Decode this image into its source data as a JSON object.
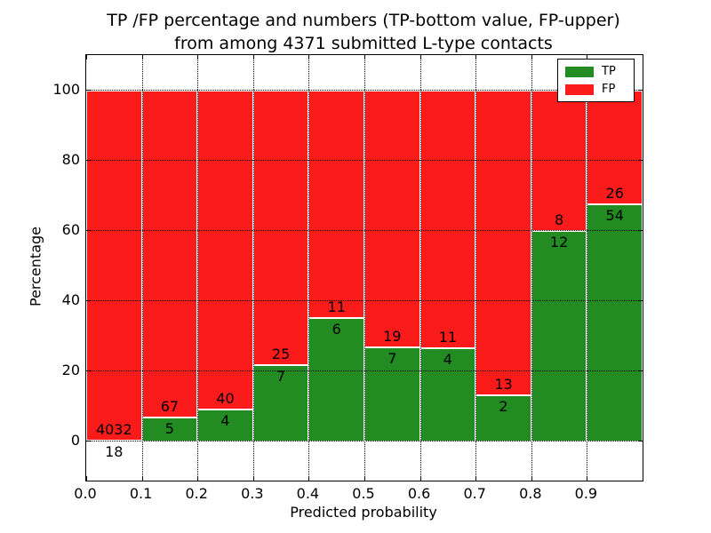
{
  "chart_data": {
    "type": "bar",
    "stacked": true,
    "title_line1": "TP /FP percentage and numbers (TP-bottom value, FP-upper)",
    "title_line2": "from among 4371 submitted L-type contacts",
    "xlabel": "Predicted probability",
    "ylabel": "Percentage",
    "x_ticks": [
      "0.0",
      "0.1",
      "0.2",
      "0.3",
      "0.4",
      "0.5",
      "0.6",
      "0.7",
      "0.8",
      "0.9"
    ],
    "y_ticks": [
      0,
      20,
      40,
      60,
      80,
      100
    ],
    "xlim": [
      0.0,
      1.0
    ],
    "ylim": [
      -11,
      110
    ],
    "grid": "dotted",
    "legend_position": "upper right",
    "total_contacts": 4371,
    "tp_color": "#228b22",
    "fp_color": "#fb1b1b",
    "bins": [
      {
        "range": "0.0-0.1",
        "tp": 18,
        "fp": 4032,
        "tp_pct": 0.44
      },
      {
        "range": "0.1-0.2",
        "tp": 5,
        "fp": 67,
        "tp_pct": 6.94
      },
      {
        "range": "0.2-0.3",
        "tp": 4,
        "fp": 40,
        "tp_pct": 9.09
      },
      {
        "range": "0.3-0.4",
        "tp": 7,
        "fp": 25,
        "tp_pct": 21.88
      },
      {
        "range": "0.4-0.5",
        "tp": 6,
        "fp": 11,
        "tp_pct": 35.29
      },
      {
        "range": "0.5-0.6",
        "tp": 7,
        "fp": 19,
        "tp_pct": 26.92
      },
      {
        "range": "0.6-0.7",
        "tp": 4,
        "fp": 11,
        "tp_pct": 26.67
      },
      {
        "range": "0.7-0.8",
        "tp": 2,
        "fp": 13,
        "tp_pct": 13.33
      },
      {
        "range": "0.8-0.9",
        "tp": 12,
        "fp": 8,
        "tp_pct": 60.0
      },
      {
        "range": "0.9-1.0",
        "tp": 54,
        "fp": 26,
        "tp_pct": 67.5
      }
    ],
    "legend": [
      {
        "label": "TP",
        "color": "#228b22"
      },
      {
        "label": "FP",
        "color": "#fb1b1b"
      }
    ]
  }
}
